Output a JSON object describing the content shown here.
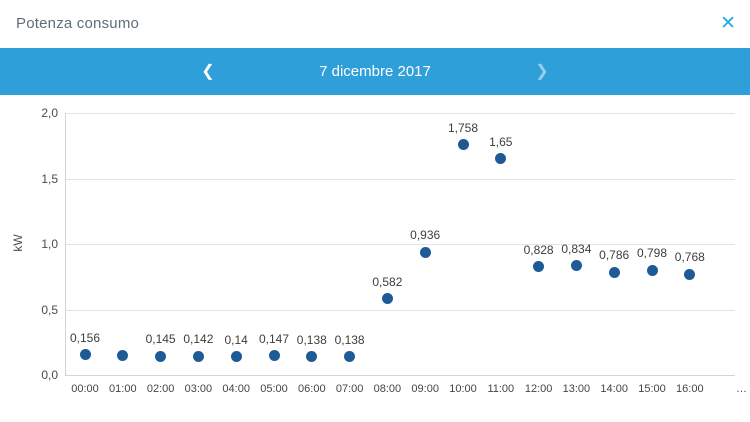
{
  "window": {
    "title": "Potenza consumo",
    "close_icon": "✕"
  },
  "nav": {
    "prev_icon": "❮",
    "date_label": "7 dicembre 2017",
    "next_icon": "❯"
  },
  "chart_data": {
    "type": "scatter",
    "title": "",
    "xlabel": "",
    "ylabel": "kW",
    "ylim": [
      0,
      2
    ],
    "grid": true,
    "legend": false,
    "yticks": [
      0,
      0.5,
      1,
      1.5,
      2
    ],
    "ytick_labels": [
      "0,0",
      "0,5",
      "1,0",
      "1,5",
      "2,0"
    ],
    "x_overflow_label": "…",
    "points": [
      {
        "time": "00:00",
        "value": 0.156,
        "label": "0,156"
      },
      {
        "time": "01:00",
        "value": 0.15,
        "label": null
      },
      {
        "time": "02:00",
        "value": 0.145,
        "label": "0,145"
      },
      {
        "time": "03:00",
        "value": 0.142,
        "label": "0,142"
      },
      {
        "time": "04:00",
        "value": 0.14,
        "label": "0,14"
      },
      {
        "time": "05:00",
        "value": 0.147,
        "label": "0,147"
      },
      {
        "time": "06:00",
        "value": 0.138,
        "label": "0,138"
      },
      {
        "time": "07:00",
        "value": 0.138,
        "label": "0,138"
      },
      {
        "time": "08:00",
        "value": 0.582,
        "label": "0,582"
      },
      {
        "time": "09:00",
        "value": 0.936,
        "label": "0,936"
      },
      {
        "time": "10:00",
        "value": 1.758,
        "label": "1,758"
      },
      {
        "time": "11:00",
        "value": 1.65,
        "label": "1,65"
      },
      {
        "time": "12:00",
        "value": 0.828,
        "label": "0,828"
      },
      {
        "time": "13:00",
        "value": 0.834,
        "label": "0,834"
      },
      {
        "time": "14:00",
        "value": 0.786,
        "label": "0,786"
      },
      {
        "time": "15:00",
        "value": 0.798,
        "label": "0,798"
      },
      {
        "time": "16:00",
        "value": 0.768,
        "label": "0,768"
      }
    ],
    "colors": {
      "dot": "#1e5a96",
      "grid": "#e3e3e3",
      "nav_bar": "#2e9fd9",
      "accent": "#29a9e0"
    }
  }
}
